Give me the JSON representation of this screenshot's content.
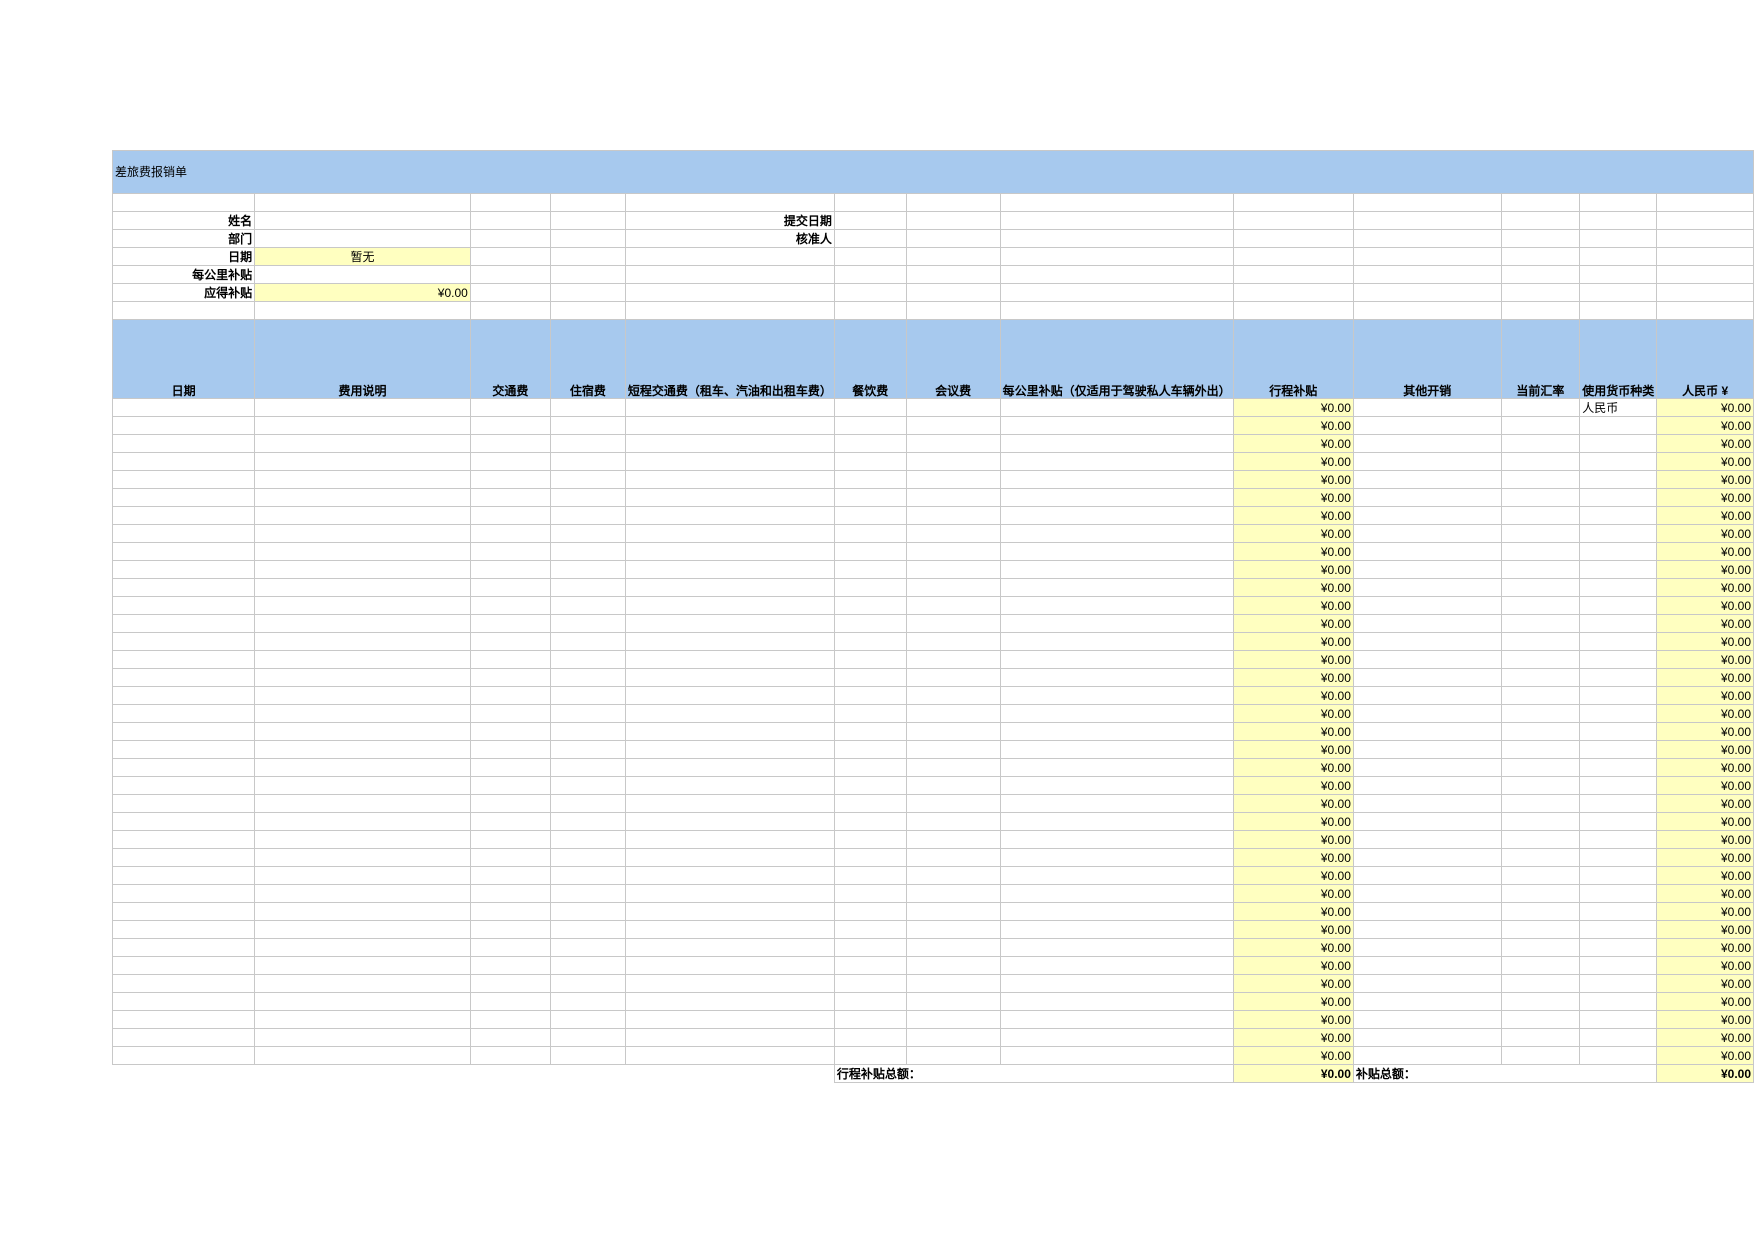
{
  "title": "差旅费报销单",
  "info": {
    "name_label": "姓名",
    "dept_label": "部门",
    "date_label": "日期",
    "date_value": "暂无",
    "per_km_label": "每公里补贴",
    "due_label": "应得补贴",
    "due_value": "¥0.00",
    "submit_date_label": "提交日期",
    "approver_label": "核准人"
  },
  "columns": [
    "日期",
    "费用说明",
    "交通费",
    "住宿费",
    "短程交通费（租车、汽油和出租车费）",
    "餐饮费",
    "会议费",
    "每公里补贴（仅适用于驾驶私人车辆外出）",
    "行程补贴",
    "其他开销",
    "当前汇率",
    "使用货币种类",
    "人民币 ¥"
  ],
  "rows": [
    {
      "trip": "¥0.00",
      "currency": "人民币",
      "rmb": "¥0.00"
    },
    {
      "trip": "¥0.00",
      "currency": "",
      "rmb": "¥0.00"
    },
    {
      "trip": "¥0.00",
      "currency": "",
      "rmb": "¥0.00"
    },
    {
      "trip": "¥0.00",
      "currency": "",
      "rmb": "¥0.00"
    },
    {
      "trip": "¥0.00",
      "currency": "",
      "rmb": "¥0.00"
    },
    {
      "trip": "¥0.00",
      "currency": "",
      "rmb": "¥0.00"
    },
    {
      "trip": "¥0.00",
      "currency": "",
      "rmb": "¥0.00"
    },
    {
      "trip": "¥0.00",
      "currency": "",
      "rmb": "¥0.00"
    },
    {
      "trip": "¥0.00",
      "currency": "",
      "rmb": "¥0.00"
    },
    {
      "trip": "¥0.00",
      "currency": "",
      "rmb": "¥0.00"
    },
    {
      "trip": "¥0.00",
      "currency": "",
      "rmb": "¥0.00"
    },
    {
      "trip": "¥0.00",
      "currency": "",
      "rmb": "¥0.00"
    },
    {
      "trip": "¥0.00",
      "currency": "",
      "rmb": "¥0.00"
    },
    {
      "trip": "¥0.00",
      "currency": "",
      "rmb": "¥0.00"
    },
    {
      "trip": "¥0.00",
      "currency": "",
      "rmb": "¥0.00"
    },
    {
      "trip": "¥0.00",
      "currency": "",
      "rmb": "¥0.00"
    },
    {
      "trip": "¥0.00",
      "currency": "",
      "rmb": "¥0.00"
    },
    {
      "trip": "¥0.00",
      "currency": "",
      "rmb": "¥0.00"
    },
    {
      "trip": "¥0.00",
      "currency": "",
      "rmb": "¥0.00"
    },
    {
      "trip": "¥0.00",
      "currency": "",
      "rmb": "¥0.00"
    },
    {
      "trip": "¥0.00",
      "currency": "",
      "rmb": "¥0.00"
    },
    {
      "trip": "¥0.00",
      "currency": "",
      "rmb": "¥0.00"
    },
    {
      "trip": "¥0.00",
      "currency": "",
      "rmb": "¥0.00"
    },
    {
      "trip": "¥0.00",
      "currency": "",
      "rmb": "¥0.00"
    },
    {
      "trip": "¥0.00",
      "currency": "",
      "rmb": "¥0.00"
    },
    {
      "trip": "¥0.00",
      "currency": "",
      "rmb": "¥0.00"
    },
    {
      "trip": "¥0.00",
      "currency": "",
      "rmb": "¥0.00"
    },
    {
      "trip": "¥0.00",
      "currency": "",
      "rmb": "¥0.00"
    },
    {
      "trip": "¥0.00",
      "currency": "",
      "rmb": "¥0.00"
    },
    {
      "trip": "¥0.00",
      "currency": "",
      "rmb": "¥0.00"
    },
    {
      "trip": "¥0.00",
      "currency": "",
      "rmb": "¥0.00"
    },
    {
      "trip": "¥0.00",
      "currency": "",
      "rmb": "¥0.00"
    },
    {
      "trip": "¥0.00",
      "currency": "",
      "rmb": "¥0.00"
    },
    {
      "trip": "¥0.00",
      "currency": "",
      "rmb": "¥0.00"
    },
    {
      "trip": "¥0.00",
      "currency": "",
      "rmb": "¥0.00"
    },
    {
      "trip": "¥0.00",
      "currency": "",
      "rmb": "¥0.00"
    },
    {
      "trip": "¥0.00",
      "currency": "",
      "rmb": "¥0.00"
    }
  ],
  "totals": {
    "trip_label": "行程补贴总额：",
    "trip_value": "¥0.00",
    "allowance_label": "补贴总额：",
    "allowance_value": "¥0.00"
  },
  "colors": {
    "header": "#a7c9ee",
    "highlight": "#ffffc0",
    "grid": "#c8c8c8"
  }
}
